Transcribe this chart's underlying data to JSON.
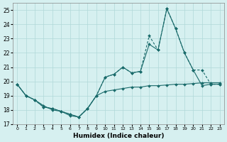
{
  "xlabel": "Humidex (Indice chaleur)",
  "bg_color": "#d6f0f0",
  "line_color": "#1a6b6b",
  "grid_color": "#b0d8d8",
  "ylim": [
    17,
    25.5
  ],
  "xlim": [
    -0.5,
    23.5
  ],
  "yticks": [
    17,
    18,
    19,
    20,
    21,
    22,
    23,
    24,
    25
  ],
  "xticks": [
    0,
    1,
    2,
    3,
    4,
    5,
    6,
    7,
    8,
    9,
    10,
    11,
    12,
    13,
    14,
    15,
    16,
    17,
    18,
    19,
    20,
    21,
    22,
    23
  ],
  "line1_x": [
    0,
    1,
    2,
    3,
    4,
    5,
    6,
    7,
    8,
    9,
    10,
    11,
    12,
    13,
    14,
    15,
    16,
    17,
    18,
    19,
    20,
    21,
    22,
    23
  ],
  "line1_y": [
    19.8,
    19.0,
    18.7,
    18.2,
    18.1,
    17.9,
    17.7,
    17.5,
    18.1,
    19.0,
    20.3,
    20.5,
    21.0,
    20.6,
    20.7,
    22.6,
    22.2,
    25.1,
    23.7,
    22.0,
    20.8,
    19.7,
    19.8,
    19.8
  ],
  "line2_x": [
    0,
    1,
    2,
    3,
    4,
    5,
    6,
    7,
    8,
    9,
    10,
    11,
    12,
    13,
    14,
    15,
    16,
    17,
    18,
    19,
    20,
    21,
    22,
    23
  ],
  "line2_y": [
    19.8,
    19.0,
    18.7,
    18.2,
    18.1,
    17.9,
    17.7,
    17.5,
    18.1,
    19.0,
    20.3,
    20.5,
    21.0,
    20.6,
    20.7,
    23.2,
    22.2,
    25.1,
    23.7,
    22.0,
    20.8,
    20.8,
    19.8,
    19.8
  ],
  "line3_x": [
    0,
    1,
    2,
    3,
    4,
    5,
    6,
    7,
    8,
    9,
    10,
    11,
    12,
    13,
    14,
    15,
    16,
    17,
    18,
    19,
    20,
    21,
    22,
    23
  ],
  "line3_y": [
    19.8,
    19.0,
    18.7,
    18.3,
    18.0,
    17.9,
    17.6,
    17.5,
    18.1,
    19.0,
    19.3,
    19.4,
    19.5,
    19.6,
    19.6,
    19.7,
    19.7,
    19.75,
    19.8,
    19.8,
    19.85,
    19.9,
    19.9,
    19.9
  ]
}
